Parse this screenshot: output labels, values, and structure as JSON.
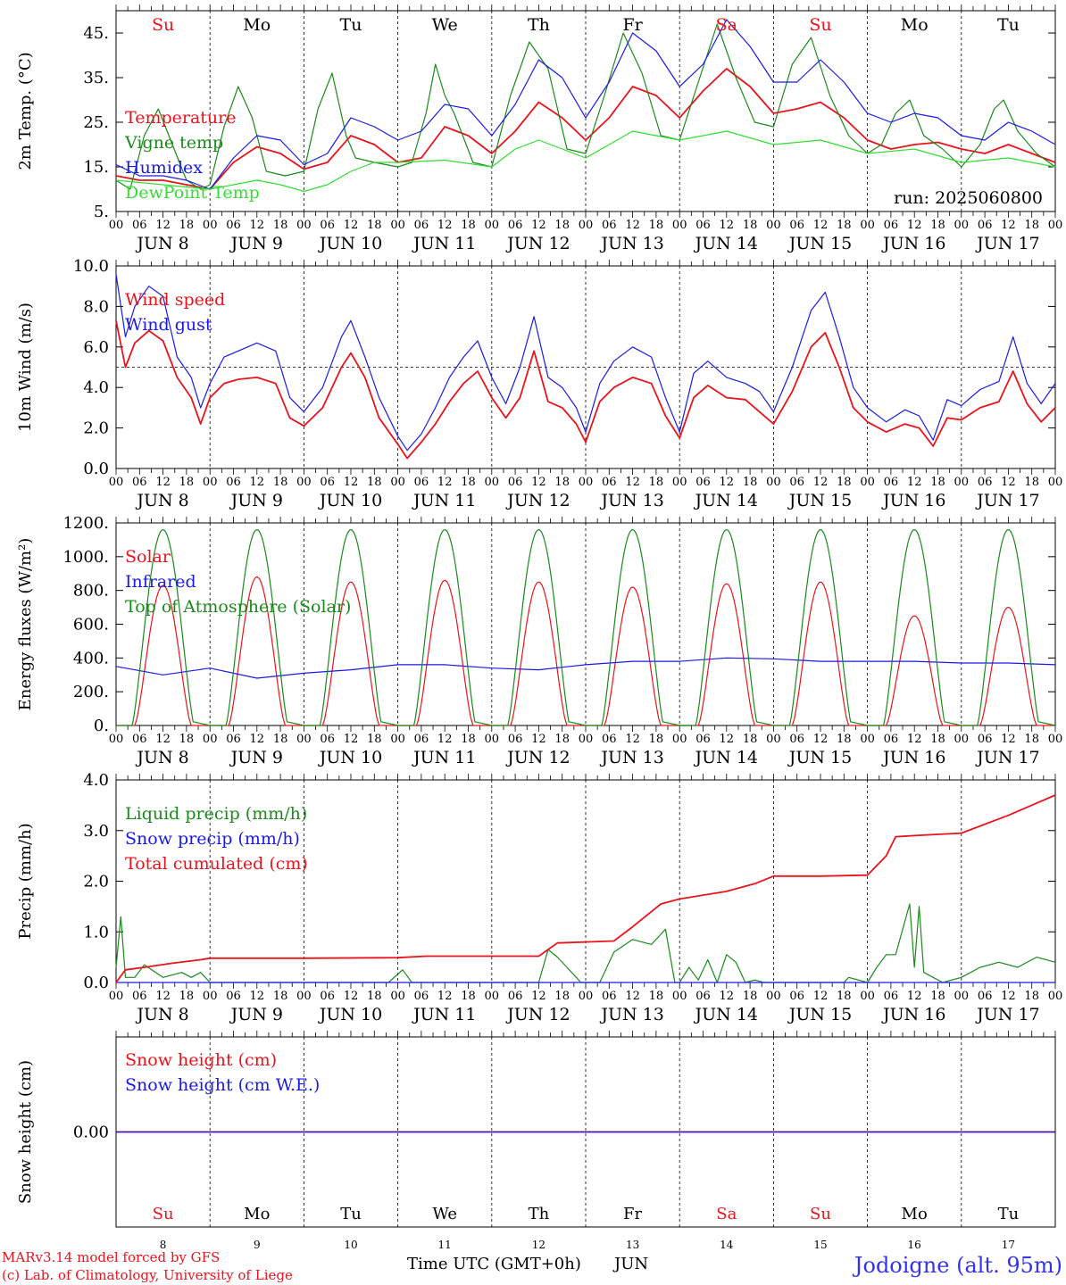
{
  "day_names": [
    {
      "label": "Su",
      "color": "#e8141c"
    },
    {
      "label": "Mo",
      "color": "#000000"
    },
    {
      "label": "Tu",
      "color": "#000000"
    },
    {
      "label": "We",
      "color": "#000000"
    },
    {
      "label": "Th",
      "color": "#000000"
    },
    {
      "label": "Fr",
      "color": "#000000"
    },
    {
      "label": "Sa",
      "color": "#e8141c"
    },
    {
      "label": "Su",
      "color": "#e8141c"
    },
    {
      "label": "Mo",
      "color": "#000000"
    },
    {
      "label": "Tu",
      "color": "#000000"
    }
  ],
  "date_labels": [
    "JUN  8",
    "JUN  9",
    "JUN 10",
    "JUN 11",
    "JUN 12",
    "JUN 13",
    "JUN 14",
    "JUN 15",
    "JUN 16",
    "JUN 17"
  ],
  "hour_labels": [
    "00",
    "06",
    "12",
    "18"
  ],
  "bottom_day_numbers": [
    "8",
    "9",
    "10",
    "11",
    "12",
    "13",
    "14",
    "15",
    "16",
    "17"
  ],
  "footer": {
    "model": "MARv3.14 model forced by GFS",
    "copyright": "(c) Lab. of Climatology, University of Liege",
    "xlabel": "Time UTC (GMT+0h)",
    "month": "JUN",
    "location": "Jodoigne (alt. 95m)"
  },
  "colors": {
    "red": "#e8141c",
    "darkgreen": "#1a8a1a",
    "blue": "#1a1ae6",
    "lightgreen": "#33dd33",
    "locationblue": "#3333ee"
  },
  "chart_data": [
    {
      "type": "line",
      "ylabel": "2m Temp. (°C)",
      "ylim": [
        5,
        50
      ],
      "yticks": [
        5,
        15,
        25,
        35,
        45
      ],
      "ytick_labels": [
        "5.",
        "15.",
        "25.",
        "35.",
        "45."
      ],
      "annotation": "run: 2025060800",
      "x_unit": "days since JUN 8 00 UTC",
      "xlim": [
        0,
        10
      ],
      "series": [
        {
          "name": "Temperature",
          "color": "#e8141c",
          "x": [
            0,
            0.25,
            0.5,
            0.75,
            1,
            1.25,
            1.5,
            1.75,
            2,
            2.25,
            2.5,
            2.75,
            3,
            3.25,
            3.5,
            3.75,
            4,
            4.25,
            4.5,
            4.75,
            5,
            5.25,
            5.5,
            5.75,
            6,
            6.25,
            6.5,
            6.75,
            7,
            7.25,
            7.5,
            7.75,
            8,
            8.25,
            8.5,
            8.75,
            9,
            9.25,
            9.5,
            9.75,
            10
          ],
          "values": [
            13,
            12,
            12,
            11,
            10,
            16,
            19.5,
            18,
            14.5,
            16,
            22,
            20,
            16,
            17,
            24,
            22,
            18,
            23,
            29.5,
            26,
            21,
            26,
            33,
            31,
            26,
            32,
            37,
            33,
            27,
            28,
            29.5,
            26,
            21,
            19,
            20,
            20.5,
            19,
            18,
            20,
            18,
            16
          ]
        },
        {
          "name": "Vigne temp",
          "color": "#1a8a1a",
          "x": [
            0,
            0.15,
            0.3,
            0.45,
            0.6,
            0.75,
            0.9,
            1,
            1.15,
            1.3,
            1.45,
            1.6,
            1.8,
            2,
            2.15,
            2.3,
            2.45,
            2.55,
            2.75,
            3,
            3.15,
            3.3,
            3.4,
            3.5,
            3.6,
            3.8,
            4,
            4.2,
            4.4,
            4.6,
            4.8,
            5,
            5.2,
            5.4,
            5.6,
            5.8,
            6,
            6.2,
            6.4,
            6.6,
            6.8,
            7,
            7.2,
            7.4,
            7.6,
            7.8,
            8,
            8.15,
            8.3,
            8.45,
            8.6,
            8.8,
            9,
            9.2,
            9.35,
            9.45,
            9.6,
            9.8,
            10
          ],
          "values": [
            12,
            10,
            22,
            28,
            20,
            12,
            10,
            11,
            24,
            33,
            26,
            14,
            13,
            14,
            28,
            36,
            22,
            17,
            16,
            15,
            16,
            27,
            38,
            31,
            27,
            16,
            15,
            31,
            43,
            37,
            19,
            18,
            31,
            45,
            36,
            22,
            21,
            34,
            47,
            35,
            25,
            24,
            38,
            44,
            31,
            22,
            18,
            20,
            27,
            30,
            22,
            19,
            15,
            20,
            28,
            30,
            23,
            18,
            15
          ]
        },
        {
          "name": "Humidex",
          "color": "#1a1ae6",
          "x": [
            0,
            0.25,
            0.5,
            0.75,
            1,
            1.25,
            1.5,
            1.75,
            2,
            2.25,
            2.5,
            2.75,
            3,
            3.25,
            3.5,
            3.75,
            4,
            4.25,
            4.5,
            4.75,
            5,
            5.25,
            5.5,
            5.75,
            6,
            6.25,
            6.5,
            6.75,
            7,
            7.25,
            7.5,
            7.75,
            8,
            8.25,
            8.5,
            8.75,
            9,
            9.25,
            9.5,
            9.75,
            10
          ],
          "values": [
            15.5,
            13,
            13,
            12,
            10,
            17,
            22,
            21,
            15.5,
            18,
            26,
            24,
            21,
            23,
            29,
            28,
            22,
            29,
            39,
            35,
            26,
            34,
            45,
            41,
            33,
            38,
            48,
            42,
            34,
            34,
            39,
            34,
            27,
            25,
            27,
            26,
            22,
            21,
            25,
            23,
            20
          ]
        },
        {
          "name": "DewPoint Temp",
          "color": "#33dd33",
          "x": [
            0,
            0.5,
            1,
            1.25,
            1.5,
            1.75,
            2,
            2.25,
            2.5,
            2.75,
            3,
            3.5,
            4,
            4.25,
            4.5,
            4.75,
            5,
            5.5,
            6,
            6.5,
            7,
            7.5,
            8,
            8.5,
            9,
            9.5,
            10
          ],
          "values": [
            12,
            11,
            10,
            11,
            12,
            11,
            9.5,
            11,
            14,
            16,
            16,
            16.5,
            15,
            19,
            21,
            19,
            17,
            23,
            21,
            23,
            20,
            21,
            18,
            19,
            16,
            17,
            15
          ]
        }
      ]
    },
    {
      "type": "line",
      "ylabel": "10m Wind (m/s)",
      "ylim": [
        0,
        10
      ],
      "yticks": [
        0,
        2,
        4,
        6,
        8,
        10
      ],
      "ytick_labels": [
        "0.0",
        "2.0",
        "4.0",
        "6.0",
        "8.0",
        "10.0"
      ],
      "reference_line": 5,
      "x_unit": "days since JUN 8 00 UTC",
      "xlim": [
        0,
        10
      ],
      "series": [
        {
          "name": "Wind speed",
          "color": "#e8141c",
          "x": [
            0,
            0.1,
            0.2,
            0.35,
            0.5,
            0.65,
            0.8,
            0.9,
            1,
            1.15,
            1.3,
            1.5,
            1.7,
            1.85,
            2,
            2.2,
            2.4,
            2.5,
            2.65,
            2.8,
            3,
            3.1,
            3.25,
            3.4,
            3.55,
            3.7,
            3.85,
            4,
            4.15,
            4.3,
            4.45,
            4.6,
            4.75,
            4.9,
            5,
            5.15,
            5.3,
            5.5,
            5.7,
            5.85,
            6,
            6.15,
            6.3,
            6.5,
            6.7,
            6.85,
            7,
            7.2,
            7.4,
            7.55,
            7.7,
            7.85,
            8,
            8.2,
            8.4,
            8.55,
            8.7,
            8.85,
            9,
            9.2,
            9.4,
            9.55,
            9.7,
            9.85,
            10
          ],
          "values": [
            7.3,
            5,
            6.2,
            6.8,
            6.3,
            4.5,
            3.5,
            2.2,
            3.5,
            4.2,
            4.4,
            4.5,
            4.2,
            2.5,
            2.1,
            3,
            5,
            5.7,
            4.5,
            2.5,
            1.2,
            0.5,
            1.3,
            2.2,
            3.3,
            4.2,
            4.8,
            3.5,
            2.5,
            3.5,
            5.8,
            3.3,
            3,
            2.2,
            1.3,
            3.3,
            4,
            4.5,
            4.2,
            2.6,
            1.5,
            3.5,
            4.1,
            3.5,
            3.4,
            2.8,
            2.2,
            3.8,
            6,
            6.7,
            5,
            3,
            2.3,
            1.8,
            2.2,
            2,
            1.1,
            2.5,
            2.4,
            3,
            3.3,
            4.8,
            3.2,
            2.3,
            3
          ]
        },
        {
          "name": "Wind gust",
          "color": "#1a1ae6",
          "x": [
            0,
            0.1,
            0.2,
            0.35,
            0.5,
            0.65,
            0.8,
            0.9,
            1,
            1.15,
            1.3,
            1.5,
            1.7,
            1.85,
            2,
            2.2,
            2.4,
            2.5,
            2.65,
            2.8,
            3,
            3.1,
            3.25,
            3.4,
            3.55,
            3.7,
            3.85,
            4,
            4.15,
            4.3,
            4.45,
            4.6,
            4.75,
            4.9,
            5,
            5.15,
            5.3,
            5.5,
            5.7,
            5.85,
            6,
            6.15,
            6.3,
            6.5,
            6.7,
            6.85,
            7,
            7.2,
            7.4,
            7.55,
            7.7,
            7.85,
            8,
            8.2,
            8.4,
            8.55,
            8.7,
            8.85,
            9,
            9.2,
            9.4,
            9.55,
            9.7,
            9.85,
            10
          ],
          "values": [
            9.6,
            6.5,
            8,
            9,
            8.5,
            5.5,
            4.5,
            3,
            4.2,
            5.5,
            5.8,
            6.2,
            5.8,
            3.5,
            2.8,
            4,
            6.5,
            7.3,
            5.5,
            3.5,
            1.6,
            0.9,
            1.7,
            3,
            4.5,
            5.5,
            6.3,
            4.5,
            3.2,
            5,
            7.5,
            4.5,
            4,
            3,
            1.8,
            4.2,
            5.3,
            6,
            5.5,
            3.5,
            1.8,
            4.7,
            5.3,
            4.5,
            4.2,
            3.8,
            2.8,
            5,
            7.8,
            8.7,
            6.5,
            4,
            3,
            2.3,
            2.9,
            2.6,
            1.4,
            3.4,
            3.1,
            3.9,
            4.3,
            6.5,
            4.2,
            3.2,
            4.2
          ]
        }
      ]
    },
    {
      "type": "line",
      "ylabel": "Energy fluxes (W/m²)",
      "ylim": [
        0,
        1200
      ],
      "yticks": [
        0,
        200,
        400,
        600,
        800,
        1000,
        1200
      ],
      "ytick_labels": [
        "0.",
        "200.",
        "400.",
        "600.",
        "800.",
        "1000.",
        "1200."
      ],
      "x_unit": "days since JUN 8 00 UTC",
      "xlim": [
        0,
        10
      ],
      "series": [
        {
          "name": "Solar",
          "color": "#e8141c",
          "daily_peaks": [
            830,
            880,
            850,
            860,
            850,
            820,
            840,
            850,
            650,
            700
          ]
        },
        {
          "name": "Infrared",
          "color": "#1a1ae6",
          "x": [
            0,
            0.5,
            1,
            1.5,
            2,
            2.5,
            3,
            3.5,
            4,
            4.5,
            5,
            5.5,
            6,
            6.5,
            7,
            7.5,
            8,
            8.5,
            9,
            9.5,
            10
          ],
          "values": [
            350,
            300,
            340,
            280,
            310,
            330,
            360,
            360,
            340,
            330,
            360,
            380,
            380,
            400,
            395,
            380,
            380,
            380,
            370,
            370,
            360
          ]
        },
        {
          "name": "Top of Atmosphere (Solar)",
          "color": "#1a8a1a",
          "daily_peak": 1160
        }
      ]
    },
    {
      "type": "line",
      "ylabel": "Precip (mm/h)",
      "ylim": [
        0,
        4
      ],
      "yticks": [
        0,
        1,
        2,
        3,
        4
      ],
      "ytick_labels": [
        "0.0",
        "1.0",
        "2.0",
        "3.0",
        "4.0"
      ],
      "x_unit": "days since JUN 8 00 UTC",
      "xlim": [
        0,
        10
      ],
      "series": [
        {
          "name": "Liquid precip (mm/h)",
          "color": "#1a8a1a",
          "x": [
            0,
            0.05,
            0.1,
            0.2,
            0.3,
            0.5,
            0.7,
            0.8,
            0.9,
            1,
            2.9,
            3.05,
            3.15,
            4.5,
            4.6,
            4.7,
            4.8,
            4.9,
            4.95,
            5,
            5.15,
            5.3,
            5.5,
            5.7,
            5.85,
            5.95,
            6,
            6.1,
            6.2,
            6.3,
            6.4,
            6.5,
            6.6,
            6.7,
            6.8,
            6.9,
            7,
            7.75,
            7.8,
            8,
            8.1,
            8.2,
            8.3,
            8.45,
            8.5,
            8.55,
            8.6,
            8.7,
            8.8,
            9,
            9.2,
            9.4,
            9.6,
            9.8,
            10
          ],
          "values": [
            0.3,
            1.3,
            0.1,
            0.1,
            0.35,
            0.1,
            0.2,
            0.1,
            0.2,
            0,
            0,
            0.25,
            0,
            0,
            0.65,
            0.5,
            0.3,
            0.1,
            0,
            0,
            0,
            0.6,
            0.85,
            0.75,
            1.05,
            0,
            0,
            0.3,
            0.05,
            0.45,
            0,
            0.55,
            0.4,
            0,
            0.05,
            0,
            0,
            0,
            0.1,
            0,
            0.3,
            0.55,
            0.55,
            1.55,
            0.3,
            1.5,
            0.2,
            0.1,
            0,
            0.1,
            0.3,
            0.4,
            0.3,
            0.5,
            0.4
          ]
        },
        {
          "name": "Snow precip (mm/h)",
          "color": "#1a1ae6",
          "x": [
            0,
            10
          ],
          "values": [
            0,
            0
          ]
        },
        {
          "name": "Total cumulated (cm)",
          "color": "#e8141c",
          "x": [
            0,
            0.1,
            0.3,
            0.6,
            0.9,
            1,
            2,
            3,
            3.3,
            4.5,
            4.7,
            5,
            5.3,
            5.5,
            5.8,
            6,
            6.5,
            6.8,
            7,
            7.5,
            8,
            8.2,
            8.3,
            8.5,
            9,
            9.5,
            10
          ],
          "values": [
            0,
            0.25,
            0.3,
            0.38,
            0.45,
            0.48,
            0.48,
            0.49,
            0.52,
            0.52,
            0.78,
            0.8,
            0.82,
            1.1,
            1.55,
            1.65,
            1.8,
            1.95,
            2.1,
            2.1,
            2.12,
            2.5,
            2.88,
            2.9,
            2.95,
            3.3,
            3.7
          ]
        }
      ]
    },
    {
      "type": "line",
      "ylabel": "Snow height (cm)",
      "yticks": [
        0
      ],
      "ytick_labels": [
        "0.00"
      ],
      "x_unit": "days since JUN 8 00 UTC",
      "xlim": [
        0,
        10
      ],
      "series": [
        {
          "name": "Snow height (cm)",
          "color": "#e8141c",
          "x": [
            0,
            10
          ],
          "values": [
            0,
            0
          ]
        },
        {
          "name": "Snow height (cm W.E.)",
          "color": "#1a1ae6",
          "x": [
            0,
            10
          ],
          "values": [
            0,
            0
          ]
        }
      ]
    }
  ]
}
